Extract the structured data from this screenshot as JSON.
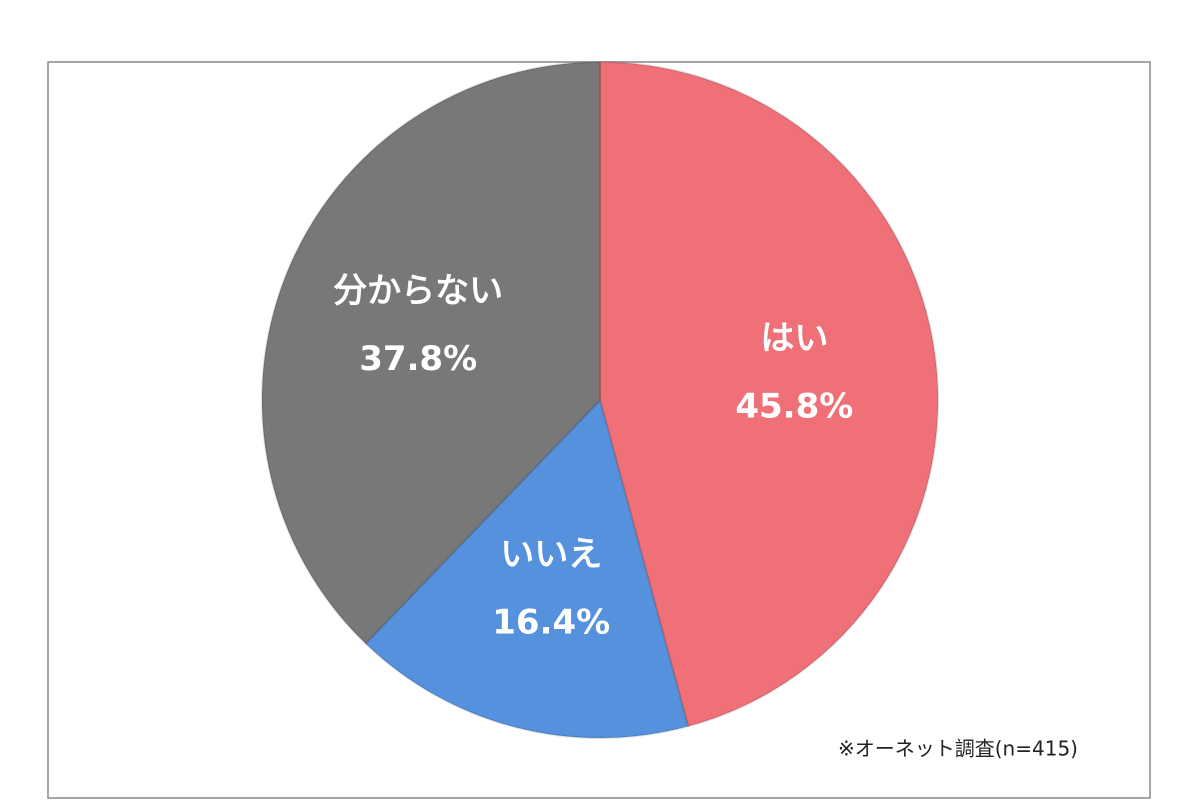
{
  "chart_data": {
    "type": "pie",
    "categories": [
      "はい",
      "いいえ",
      "分からない"
    ],
    "values": [
      45.8,
      16.4,
      37.8
    ],
    "value_labels": [
      "45.8%",
      "16.4%",
      "37.8%"
    ],
    "colors": [
      "#f07078",
      "#5591dc",
      "#787878"
    ],
    "note": "※オーネット調査(n=415)"
  }
}
